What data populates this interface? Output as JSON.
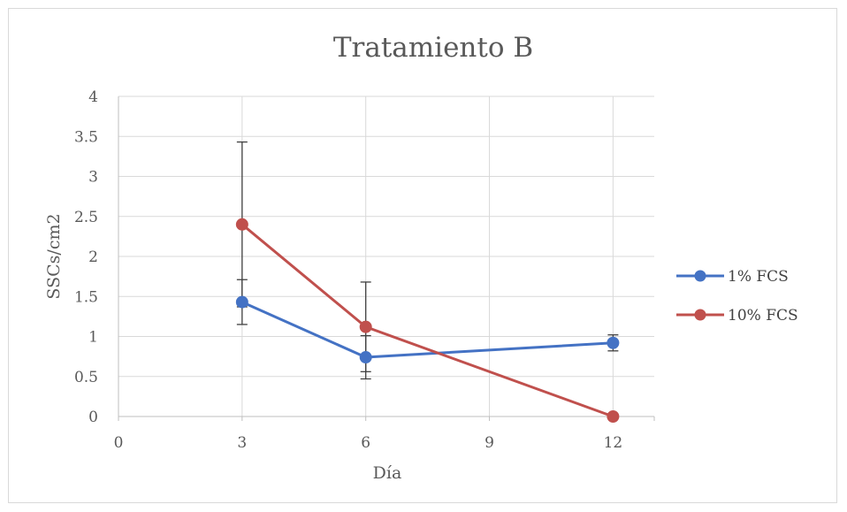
{
  "chart_data": {
    "type": "line",
    "title": "Tratamiento B",
    "xlabel": "Día",
    "ylabel": "SSCs/cm2",
    "xlim": [
      0,
      13
    ],
    "ylim": [
      0,
      4
    ],
    "x_ticks": [
      "0",
      "3",
      "6",
      "9",
      "12"
    ],
    "y_ticks": [
      "0",
      "0.5",
      "1",
      "1.5",
      "2",
      "2.5",
      "3",
      "3.5",
      "4"
    ],
    "grid": true,
    "legend_position": "right",
    "series": [
      {
        "name": "1% FCS",
        "color": "#4472c4",
        "x": [
          3,
          6,
          12
        ],
        "y": [
          1.43,
          0.74,
          0.92
        ],
        "error": [
          0.28,
          0.27,
          0.1
        ]
      },
      {
        "name": "10% FCS",
        "color": "#c0504d",
        "x": [
          3,
          6,
          12
        ],
        "y": [
          2.4,
          1.12,
          0.0
        ],
        "error": [
          1.03,
          0.56,
          0.0
        ]
      }
    ]
  }
}
